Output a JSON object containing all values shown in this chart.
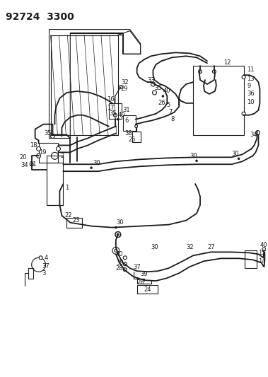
{
  "title": "92724  3300",
  "bg_color": "#ffffff",
  "line_color": "#1a1a1a",
  "title_fontsize": 10,
  "label_fontsize": 6,
  "fig_width": 3.79,
  "fig_height": 5.33,
  "dpi": 100
}
